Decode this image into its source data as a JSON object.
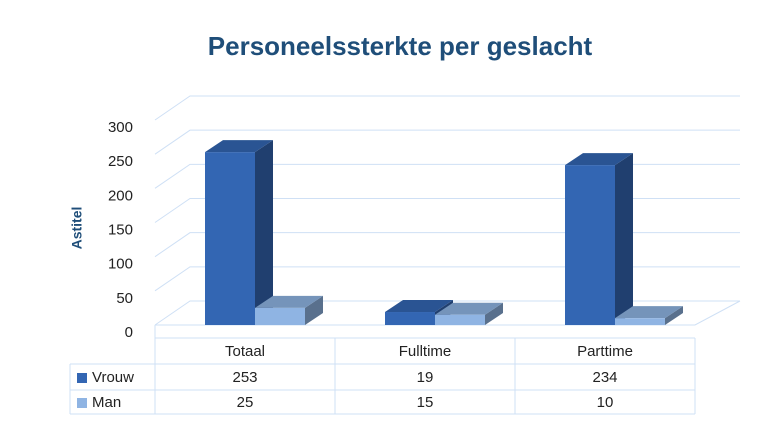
{
  "chart_data": {
    "type": "bar3d",
    "title": "Personeelssterkte per geslacht",
    "y_label": "Astitel",
    "categories": [
      "Totaal",
      "Fulltime",
      "Parttime"
    ],
    "series": [
      {
        "name": "Vrouw",
        "color": "#3366b3",
        "values": [
          253,
          19,
          234
        ]
      },
      {
        "name": "Man",
        "color": "#8fb4e3",
        "values": [
          25,
          15,
          10
        ]
      }
    ],
    "ylim": [
      0,
      300
    ],
    "yticks": [
      0,
      50,
      100,
      150,
      200,
      250,
      300
    ],
    "grid": true
  }
}
